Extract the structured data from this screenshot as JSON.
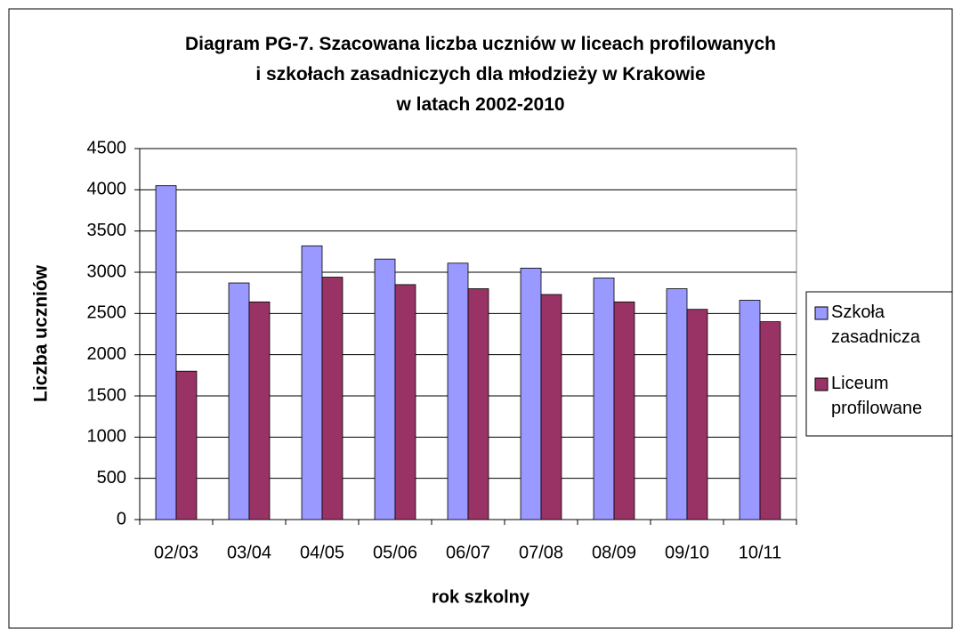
{
  "chart_data": {
    "type": "bar",
    "title": "Diagram PG-7. Szacowana liczba uczniów w liceach profilowanych\ni szkołach zasadniczych dla młodzieży w Krakowie\nw latach 2002-2010",
    "x_label": "rok szkolny",
    "y_label": "Liczba uczniów",
    "categories": [
      "02/03",
      "03/04",
      "04/05",
      "05/06",
      "06/07",
      "07/08",
      "08/09",
      "09/10",
      "10/11"
    ],
    "series": [
      {
        "name": "Szkoła zasadnicza",
        "color": "#9999ff",
        "values": [
          4050,
          2870,
          3320,
          3160,
          3110,
          3050,
          2930,
          2800,
          2660
        ]
      },
      {
        "name": "Liceum profilowane",
        "color": "#993366",
        "values": [
          1800,
          2640,
          2940,
          2850,
          2800,
          2730,
          2640,
          2550,
          2400
        ]
      }
    ],
    "ylim": [
      0,
      4500
    ],
    "yticks": [
      0,
      500,
      1000,
      1500,
      2000,
      2500,
      3000,
      3500,
      4000,
      4500
    ],
    "grid": true,
    "legend": "right"
  }
}
